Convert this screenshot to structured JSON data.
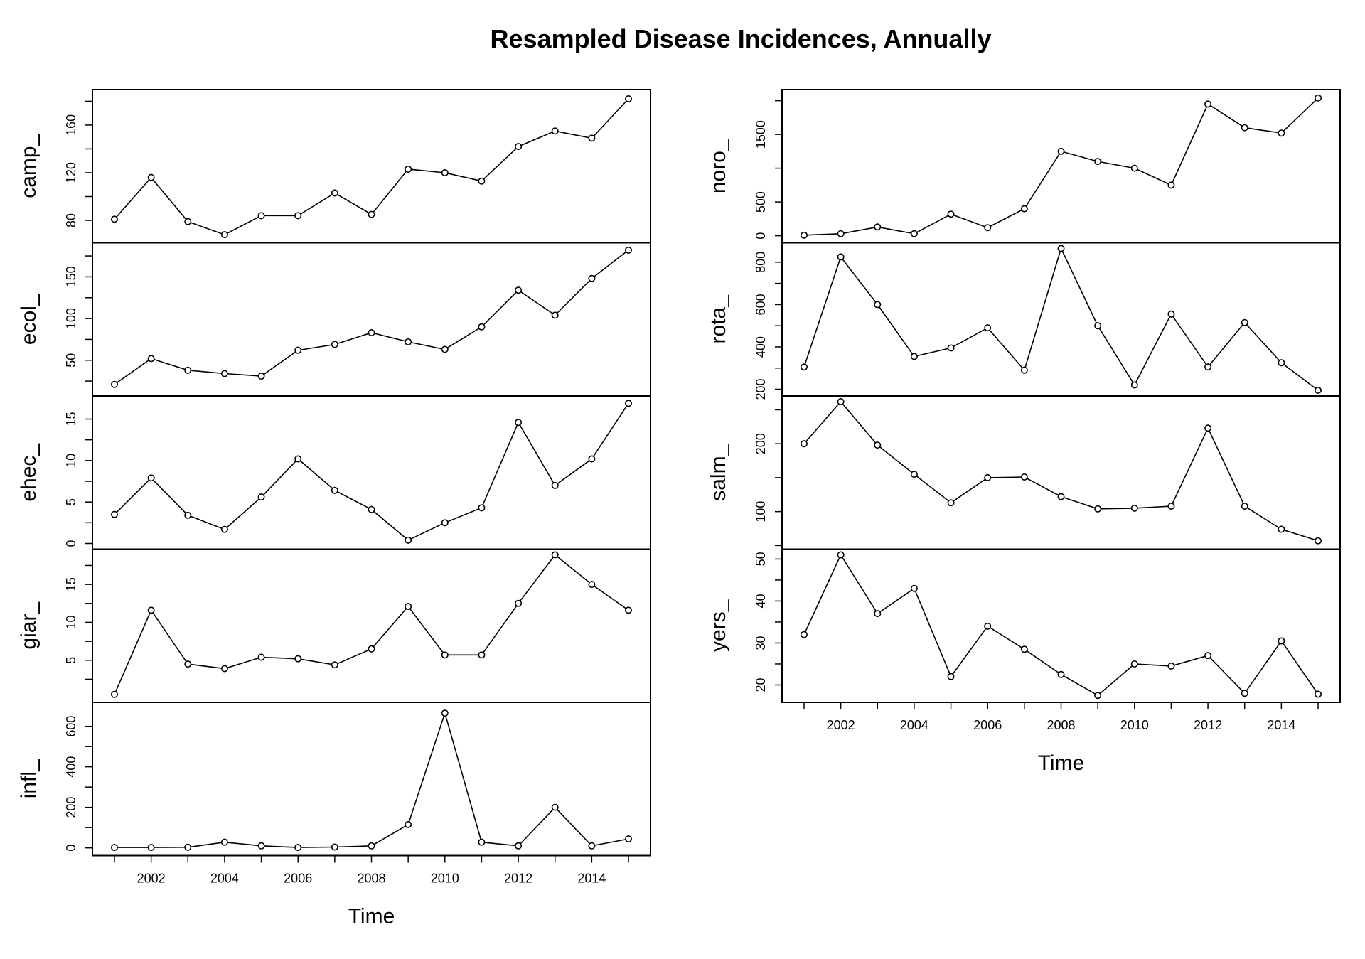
{
  "chart_data": {
    "type": "line",
    "title": "Resampled Disease Incidences, Annually",
    "xlabel": "Time",
    "x": [
      2001,
      2002,
      2003,
      2004,
      2005,
      2006,
      2007,
      2008,
      2009,
      2010,
      2011,
      2012,
      2013,
      2014,
      2015
    ],
    "xticks": [
      2002,
      2004,
      2006,
      2008,
      2010,
      2012,
      2014
    ],
    "xlim": [
      2000.4,
      2015.6
    ],
    "marker": "open-circle",
    "line_color": "#000000",
    "columns": [
      {
        "panels": [
          {
            "name": "camp_",
            "ylim": [
              66,
              185
            ],
            "yticks": [
              80,
              120,
              160
            ],
            "minor_yticks": [
              100,
              140,
              180
            ],
            "values": [
              81,
              116,
              79,
              68,
              84,
              84,
              103,
              85,
              123,
              120,
              113,
              142,
              155,
              149,
              182
            ]
          },
          {
            "name": "ecol_",
            "ylim": [
              14,
              184
            ],
            "yticks": [
              50,
              100,
              150
            ],
            "minor_yticks": [
              25,
              75,
              125,
              175
            ],
            "values": [
              21,
              52,
              38,
              34,
              31,
              62,
              69,
              83,
              72,
              63,
              90,
              134,
              104,
              148,
              182
            ]
          },
          {
            "name": "ehec_",
            "ylim": [
              0,
              17.1
            ],
            "yticks": [
              0,
              5,
              10,
              15
            ],
            "minor_yticks": [
              2.5,
              7.5,
              12.5
            ],
            "values": [
              3.5,
              7.9,
              3.4,
              1.7,
              5.6,
              10.2,
              6.4,
              4.1,
              0.4,
              2.5,
              4.3,
              14.6,
              7.0,
              10.2,
              16.9
            ]
          },
          {
            "name": "giar_",
            "ylim": [
              0.2,
              18.9
            ],
            "yticks": [
              5,
              10,
              15
            ],
            "minor_yticks": [
              2.5,
              7.5,
              12.5,
              17.5
            ],
            "values": [
              0.5,
              11.6,
              4.5,
              3.9,
              5.4,
              5.2,
              4.4,
              6.5,
              12.1,
              5.7,
              5.7,
              12.5,
              18.9,
              15.0,
              11.6
            ]
          },
          {
            "name": "infl_",
            "ylim": [
              -10,
              690
            ],
            "yticks": [
              0,
              200,
              400,
              600
            ],
            "minor_yticks": [
              100,
              300,
              500
            ],
            "values": [
              2,
              2,
              3,
              28,
              10,
              2,
              4,
              10,
              115,
              665,
              28,
              10,
              200,
              10,
              44
            ]
          }
        ]
      },
      {
        "panels": [
          {
            "name": "noro_",
            "ylim": [
              -20,
              2080
            ],
            "yticks": [
              0,
              500,
              1500
            ],
            "minor_yticks": [
              1000,
              2000
            ],
            "values": [
              8,
              30,
              130,
              30,
              320,
              120,
              400,
              1250,
              1100,
              1000,
              750,
              1950,
              1600,
              1520,
              2040
            ]
          },
          {
            "name": "rota_",
            "ylim": [
              195,
              865
            ],
            "yticks": [
              200,
              400,
              600,
              800
            ],
            "minor_yticks": [
              300,
              500,
              700
            ],
            "values": [
              305,
              825,
              600,
              355,
              395,
              490,
              290,
              865,
              500,
              220,
              555,
              305,
              515,
              325,
              195
            ]
          },
          {
            "name": "salm_",
            "ylim": [
              53,
              262
            ],
            "yticks": [
              100,
              200
            ],
            "minor_yticks": [
              50,
              150,
              250
            ],
            "values": [
              200,
              262,
              198,
              155,
              113,
              150,
              151,
              122,
              104,
              105,
              108,
              223,
              108,
              74,
              57
            ]
          },
          {
            "name": "yers_",
            "ylim": [
              17.2,
              51
            ],
            "yticks": [
              20,
              30,
              40,
              50
            ],
            "minor_yticks": [
              25,
              35,
              45
            ],
            "values": [
              32,
              51,
              37,
              43,
              22,
              34,
              28.5,
              22.5,
              17.5,
              25,
              24.5,
              27,
              18,
              30.5,
              17.8
            ]
          }
        ]
      }
    ]
  }
}
